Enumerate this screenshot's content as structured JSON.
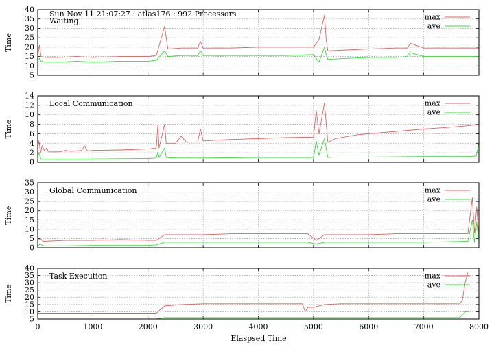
{
  "header": "Sun Nov 11 21:07:27 : atlas176 : 992 Processors",
  "xlabel": "Elaspsed Time",
  "xlim": [
    0,
    8000
  ],
  "x_ticks": [
    0,
    1000,
    2000,
    3000,
    4000,
    5000,
    6000,
    7000,
    8000
  ],
  "colors": {
    "max": "#e06060",
    "ave": "#33dd33",
    "grid": "#aaaaaa"
  },
  "chart_data": [
    {
      "type": "line",
      "title": "Waiting",
      "ylabel": "Time",
      "ylim": [
        5,
        40
      ],
      "y_ticks": [
        5,
        10,
        15,
        20,
        25,
        30,
        35,
        40
      ],
      "grid": true,
      "legend_placement": "top-right",
      "series": [
        {
          "name": "max",
          "x": [
            0,
            30,
            60,
            150,
            400,
            700,
            1000,
            1500,
            2000,
            2150,
            2300,
            2360,
            2600,
            2900,
            2950,
            3000,
            3500,
            4000,
            4500,
            5000,
            5100,
            5200,
            5230,
            5260,
            5600,
            6000,
            6500,
            6700,
            6760,
            7000,
            7500,
            8000
          ],
          "y": [
            15,
            21,
            15,
            14.5,
            14.5,
            15,
            14.5,
            15,
            15,
            15.5,
            31,
            19,
            19.5,
            19.5,
            23,
            19.5,
            19.5,
            20,
            20,
            20,
            24,
            37,
            24,
            18,
            18.5,
            19,
            19.5,
            19.5,
            22,
            19.5,
            19.5,
            19.5
          ]
        },
        {
          "name": "ave",
          "x": [
            0,
            30,
            60,
            150,
            400,
            700,
            1000,
            1500,
            2000,
            2150,
            2300,
            2360,
            2600,
            2900,
            2950,
            3000,
            3500,
            4000,
            4500,
            5000,
            5100,
            5200,
            5230,
            5260,
            5600,
            6000,
            6500,
            6700,
            6760,
            7000,
            7500,
            8000
          ],
          "y": [
            12.5,
            14,
            12.5,
            12,
            12,
            12.5,
            12,
            12.5,
            12.5,
            13,
            18,
            15,
            15.5,
            15.5,
            18,
            15.5,
            15.5,
            15.5,
            15.5,
            16,
            12,
            20,
            16,
            13.5,
            14,
            14.5,
            14.5,
            15,
            17,
            15,
            15,
            15
          ]
        }
      ]
    },
    {
      "type": "line",
      "title": "Local Communication",
      "ylabel": "Time",
      "ylim": [
        0,
        14
      ],
      "y_ticks": [
        0,
        2,
        4,
        6,
        8,
        10,
        12,
        14
      ],
      "grid": true,
      "legend_placement": "top-right",
      "series": [
        {
          "name": "max",
          "x": [
            0,
            20,
            50,
            80,
            120,
            160,
            200,
            400,
            500,
            600,
            800,
            850,
            900,
            1000,
            1500,
            2000,
            2150,
            2180,
            2200,
            2300,
            2330,
            2500,
            2600,
            2700,
            2900,
            2950,
            3000,
            3500,
            4000,
            4500,
            5000,
            5050,
            5100,
            5200,
            5260,
            5400,
            5800,
            6500,
            7000,
            7500,
            7800,
            8000
          ],
          "y": [
            3,
            4.5,
            2,
            3.5,
            2.5,
            3,
            2.2,
            2.2,
            2.5,
            2.3,
            2.5,
            3.5,
            2.4,
            2.5,
            2.6,
            2.8,
            3,
            8,
            3,
            8,
            4,
            4,
            5.5,
            4.2,
            4.3,
            7,
            4.5,
            4.8,
            5,
            5.2,
            5.3,
            11,
            6,
            12.5,
            4.2,
            5,
            5.8,
            6.5,
            7,
            7.4,
            7.7,
            8
          ]
        },
        {
          "name": "ave",
          "x": [
            0,
            20,
            60,
            200,
            1000,
            2000,
            2150,
            2180,
            2200,
            2300,
            2330,
            2500,
            3000,
            4000,
            5000,
            5050,
            5100,
            5200,
            5260,
            5400,
            6000,
            7000,
            7800,
            7950,
            8000
          ],
          "y": [
            0.8,
            2,
            0.6,
            0.6,
            0.7,
            0.8,
            0.9,
            2.2,
            1,
            3,
            1,
            0.9,
            0.9,
            1,
            1,
            4.5,
            1.5,
            5,
            1,
            1.1,
            1.1,
            1.2,
            1.2,
            1.3,
            4
          ]
        }
      ]
    },
    {
      "type": "line",
      "title": "Global Communication",
      "ylabel": "Time",
      "ylim": [
        0,
        35
      ],
      "y_ticks": [
        0,
        5,
        10,
        15,
        20,
        25,
        30,
        35
      ],
      "grid": true,
      "legend_placement": "top-right",
      "series": [
        {
          "name": "max",
          "x": [
            0,
            50,
            100,
            500,
            1000,
            1500,
            2000,
            2150,
            2300,
            2600,
            3000,
            3500,
            4000,
            4500,
            4900,
            5050,
            5200,
            5500,
            6000,
            6500,
            7000,
            7500,
            7800,
            7880,
            7920,
            7960,
            8000
          ],
          "y": [
            4,
            5,
            3.5,
            4,
            4,
            4.5,
            4,
            4,
            7,
            7,
            7,
            7.5,
            7.5,
            7.5,
            7.5,
            4,
            7,
            7,
            7,
            7.5,
            7.5,
            7.5,
            7.5,
            27,
            8,
            22,
            6
          ]
        },
        {
          "name": "ave",
          "x": [
            0,
            50,
            100,
            500,
            1000,
            2000,
            2150,
            2300,
            2600,
            3000,
            4000,
            4900,
            5050,
            5200,
            6000,
            7000,
            7800,
            7880,
            7920,
            7960,
            8000
          ],
          "y": [
            1,
            2,
            1,
            1,
            1.2,
            1.2,
            1.5,
            3,
            3,
            3,
            3,
            3,
            2,
            3,
            3,
            3,
            3.5,
            15,
            3,
            14,
            3
          ]
        }
      ]
    },
    {
      "type": "line",
      "title": "Task Execution",
      "ylabel": "Time",
      "ylim": [
        5,
        40
      ],
      "y_ticks": [
        5,
        10,
        15,
        20,
        25,
        30,
        35,
        40
      ],
      "grid": true,
      "legend_placement": "top-right",
      "series": [
        {
          "name": "max",
          "x": [
            0,
            500,
            1000,
            1500,
            2000,
            2150,
            2300,
            2600,
            3000,
            3500,
            4000,
            4500,
            4800,
            4850,
            4900,
            5000,
            5200,
            5500,
            6000,
            6500,
            7000,
            7500,
            7650,
            7700,
            7750,
            7800
          ],
          "y": [
            9,
            9,
            9,
            9,
            9,
            9,
            14,
            15,
            15.5,
            15.5,
            15.5,
            15.5,
            15.5,
            10,
            13,
            13,
            15,
            15.5,
            15.5,
            15.5,
            15.5,
            15.5,
            15.5,
            18,
            30,
            37
          ]
        },
        {
          "name": "ave",
          "x": [
            0,
            1000,
            2000,
            2150,
            2300,
            3000,
            4000,
            5000,
            6000,
            7000,
            7650,
            7700,
            7750,
            7800
          ],
          "y": [
            5,
            5,
            5,
            5,
            6,
            6,
            6,
            6,
            6,
            6,
            6,
            8,
            10,
            10
          ]
        }
      ]
    }
  ]
}
